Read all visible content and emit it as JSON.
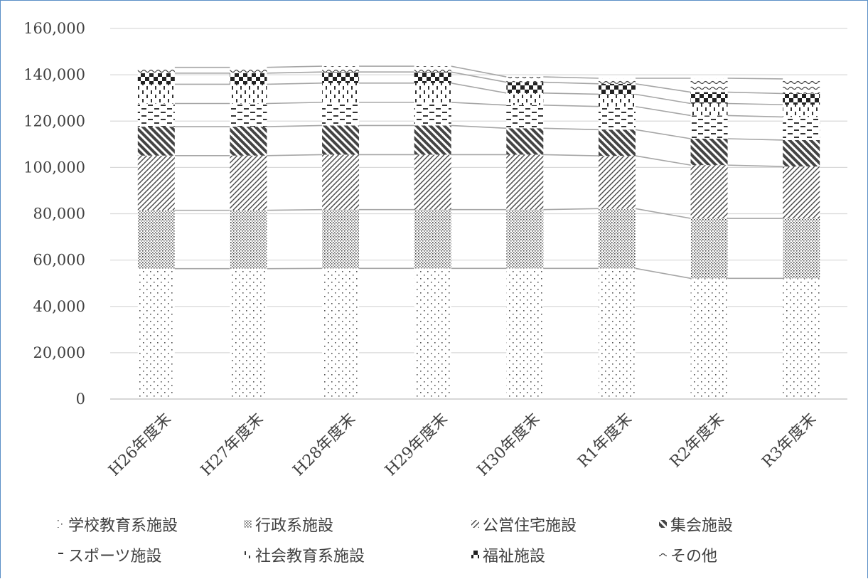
{
  "chart_data": {
    "type": "bar",
    "stacked": true,
    "categories": [
      "H26年度末",
      "H27年度末",
      "H28年度末",
      "H29年度末",
      "H30年度末",
      "R1年度末",
      "R2年度末",
      "R3年度末"
    ],
    "ylim": [
      0,
      160000
    ],
    "yticks": [
      "0",
      "20,000",
      "40,000",
      "60,000",
      "80,000",
      "100,000",
      "120,000",
      "140,000",
      "160,000"
    ],
    "grid": true,
    "legend_position": "bottom",
    "series_lines": true,
    "series": [
      {
        "name": "学校教育系施設",
        "pattern": "dots",
        "values": [
          56300,
          56300,
          56400,
          56400,
          56400,
          56400,
          52100,
          52100
        ]
      },
      {
        "name": "行政系施設",
        "pattern": "dense-dots",
        "values": [
          25200,
          25200,
          25400,
          25400,
          25400,
          25800,
          25900,
          25900
        ]
      },
      {
        "name": "公営住宅施設",
        "pattern": "diag-thin",
        "values": [
          23600,
          23600,
          23700,
          23700,
          23700,
          22800,
          23000,
          22400
        ]
      },
      {
        "name": "集会施設",
        "pattern": "diag-thick",
        "values": [
          12500,
          12500,
          12600,
          12600,
          11400,
          11300,
          11400,
          11400
        ]
      },
      {
        "name": "スポーツ施設",
        "pattern": "dashes",
        "values": [
          10000,
          10000,
          10000,
          10000,
          10000,
          10000,
          10000,
          10000
        ]
      },
      {
        "name": "社会教育系施設",
        "pattern": "vbars",
        "values": [
          8300,
          8300,
          8300,
          8300,
          5200,
          5300,
          5200,
          5300
        ]
      },
      {
        "name": "福祉施設",
        "pattern": "checker",
        "values": [
          4800,
          4800,
          4800,
          4800,
          4700,
          4500,
          4900,
          4800
        ]
      },
      {
        "name": "その他",
        "pattern": "waves",
        "values": [
          2500,
          2500,
          2500,
          2500,
          2300,
          2400,
          6000,
          6300
        ]
      }
    ]
  }
}
